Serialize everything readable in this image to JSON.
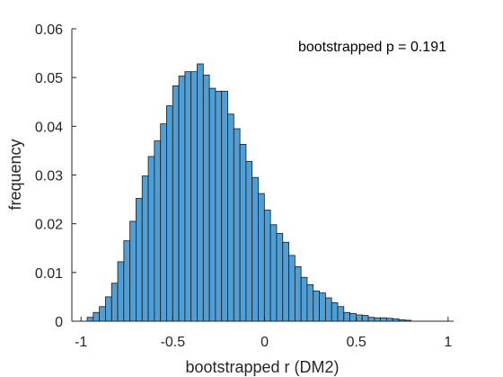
{
  "chart_data": {
    "type": "bar",
    "xlabel": "bootstrapped r (DM2)",
    "ylabel": "frequency",
    "annotation": "bootstrapped p = 0.191",
    "xlim": [
      -1.05,
      1.03
    ],
    "ylim": [
      0,
      0.06
    ],
    "xticks": [
      -1,
      -0.5,
      0,
      0.5,
      1
    ],
    "xtick_labels": [
      "-1",
      "-0.5",
      "0",
      "0.5",
      "1"
    ],
    "yticks": [
      0,
      0.01,
      0.02,
      0.03,
      0.04,
      0.05,
      0.06
    ],
    "ytick_labels": [
      "0",
      "0.01",
      "0.02",
      "0.03",
      "0.04",
      "0.05",
      "0.06"
    ],
    "bin_width": 0.0333,
    "bin_start": -0.9667,
    "values": [
      0.0008,
      0.0018,
      0.003,
      0.005,
      0.0078,
      0.0122,
      0.0165,
      0.0205,
      0.0252,
      0.0298,
      0.0338,
      0.037,
      0.0405,
      0.0442,
      0.0483,
      0.0503,
      0.0512,
      0.0512,
      0.0528,
      0.0505,
      0.0478,
      0.0472,
      0.0472,
      0.0425,
      0.0395,
      0.0363,
      0.0328,
      0.0295,
      0.0262,
      0.0228,
      0.0198,
      0.018,
      0.0162,
      0.0135,
      0.0112,
      0.009,
      0.0075,
      0.0062,
      0.0058,
      0.0048,
      0.0038,
      0.003,
      0.0018,
      0.0016,
      0.0013,
      0.0012,
      0.0008,
      0.0007,
      0.0007,
      0.0006,
      0.0005,
      0.0003,
      0.0002
    ],
    "bar_color": "#4f9fd6",
    "edge_color": "#1a1a1a",
    "grid": false
  }
}
